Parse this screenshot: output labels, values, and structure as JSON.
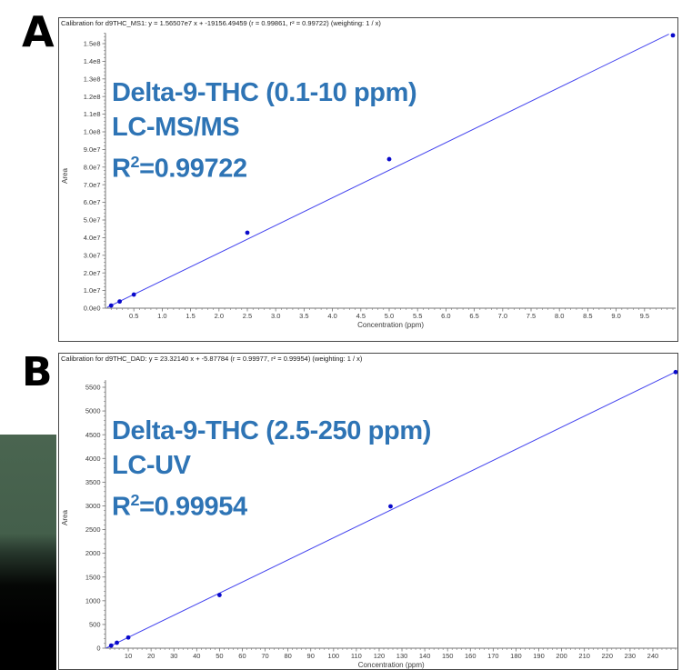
{
  "figure_labels": [
    "A",
    "B"
  ],
  "colors": {
    "fit_line": "#4343ee",
    "marker": "#0a0acb",
    "annotation_text": "#2E74B5",
    "axis": "#777777",
    "tick_label": "#3a3a3a",
    "header_text": "#1b1b1b",
    "panel_border": "#474747",
    "corner_block_top": "#4a6550",
    "corner_block_bottom": "#000000"
  },
  "chart_data": [
    {
      "panel": "A",
      "type": "scatter",
      "title": "Calibration for d9THC_MS1: y = 1.56507e7 x + -19156.49459 (r = 0.99861, r² = 0.99722)  (weighting: 1 / x)",
      "annotation": {
        "line1": "Delta-9-THC (0.1-10 ppm)",
        "line2": "LC-MS/MS",
        "r_label": "R",
        "r_sup": "2",
        "r_eq": "=0.99722"
      },
      "xlabel": "Concentration (ppm)",
      "ylabel": "Area",
      "xlim": [
        0,
        10.05
      ],
      "ylim": [
        0,
        156000000
      ],
      "x_tick_labels": [
        "0.5",
        "1.0",
        "1.5",
        "2.0",
        "2.5",
        "3.0",
        "3.5",
        "4.0",
        "4.5",
        "5.0",
        "5.5",
        "6.0",
        "6.5",
        "7.0",
        "7.5",
        "8.0",
        "8.5",
        "9.0",
        "9.5"
      ],
      "y_tick_labels": [
        "0.0e0",
        "1.0e7",
        "2.0e7",
        "3.0e7",
        "4.0e7",
        "5.0e7",
        "6.0e7",
        "7.0e7",
        "8.0e7",
        "9.0e7",
        "1.0e8",
        "1.1e8",
        "1.2e8",
        "1.3e8",
        "1.4e8",
        "1.5e8"
      ],
      "x_minor_step": 0.1,
      "y_minor_step": 2000000,
      "points": [
        [
          0.1,
          1500000
        ],
        [
          0.25,
          3800000
        ],
        [
          0.5,
          7700000
        ],
        [
          2.5,
          42800000
        ],
        [
          5.0,
          84500000
        ],
        [
          10.0,
          154700000
        ]
      ],
      "fit": {
        "equation": "y = 1.56507e7 x + -19156.49459",
        "slope": 15650700,
        "intercept": -19156.49459,
        "r": 0.99861,
        "r2": 0.99722,
        "weighting": "1 / x",
        "line_x_range": [
          0.03,
          9.93
        ]
      }
    },
    {
      "panel": "B",
      "type": "scatter",
      "title": "Calibration for d9THC_DAD: y = 23.32140 x + -5.87784 (r = 0.99977, r² = 0.99954)  (weighting: 1 / x)",
      "annotation": {
        "line1": "Delta-9-THC (2.5-250 ppm)",
        "line2": "LC-UV",
        "r_label": "R",
        "r_sup": "2",
        "r_eq": "=0.99954"
      },
      "xlabel": "Concentration (ppm)",
      "ylabel": "Area",
      "xlim": [
        0,
        250.6
      ],
      "ylim": [
        0,
        5650
      ],
      "x_tick_labels": [
        "10",
        "20",
        "30",
        "40",
        "50",
        "60",
        "70",
        "80",
        "90",
        "100",
        "110",
        "120",
        "130",
        "140",
        "150",
        "160",
        "170",
        "180",
        "190",
        "200",
        "210",
        "220",
        "230",
        "240"
      ],
      "y_tick_labels": [
        "0",
        "500",
        "1000",
        "1500",
        "2000",
        "2500",
        "3000",
        "3500",
        "4000",
        "4500",
        "5000",
        "5500"
      ],
      "x_minor_step": 2,
      "y_minor_step": 100,
      "points": [
        [
          2.5,
          55
        ],
        [
          5,
          115
        ],
        [
          10,
          225
        ],
        [
          50,
          1120
        ],
        [
          125,
          2990
        ],
        [
          250,
          5820
        ]
      ],
      "fit": {
        "equation": "y = 23.32140 x + -5.87784",
        "slope": 23.3214,
        "intercept": -5.87784,
        "r": 0.99977,
        "r2": 0.99954,
        "weighting": "1 / x",
        "line_x_range": [
          0.35,
          250
        ]
      }
    }
  ]
}
